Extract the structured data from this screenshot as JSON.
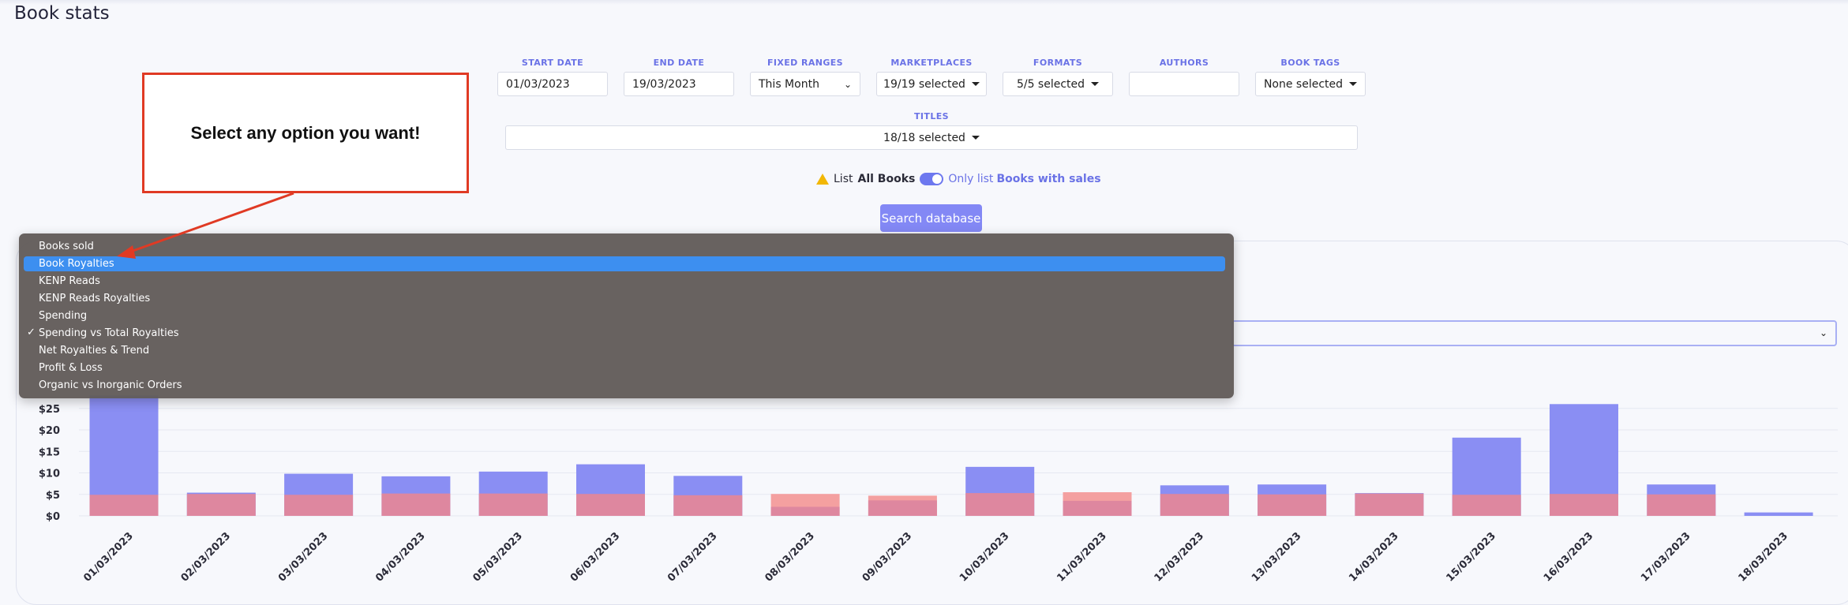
{
  "page": {
    "title": "Book stats"
  },
  "filters": {
    "start_date": {
      "label": "START DATE",
      "value": "01/03/2023"
    },
    "end_date": {
      "label": "END DATE",
      "value": "19/03/2023"
    },
    "fixed_ranges": {
      "label": "FIXED RANGES",
      "value": "This Month"
    },
    "marketplaces": {
      "label": "MARKETPLACES",
      "value": "19/19 selected"
    },
    "formats": {
      "label": "FORMATS",
      "value": "5/5 selected"
    },
    "authors": {
      "label": "AUTHORS",
      "value": ""
    },
    "book_tags": {
      "label": "BOOK TAGS",
      "value": "None selected"
    },
    "titles": {
      "label": "TITLES",
      "value": "18/18 selected"
    }
  },
  "toggle": {
    "prefix": "List",
    "all_books": "All Books",
    "only_text": "Only list",
    "books_with_sales": "Books with sales",
    "state": "on"
  },
  "search_button": "Search database",
  "annotation": {
    "text": "Select any option you want!"
  },
  "dropdown": {
    "items": [
      {
        "label": "Books sold",
        "selected": false,
        "checked": false
      },
      {
        "label": "Book Royalties",
        "selected": true,
        "checked": false
      },
      {
        "label": "KENP Reads",
        "selected": false,
        "checked": false
      },
      {
        "label": "KENP Reads Royalties",
        "selected": false,
        "checked": false
      },
      {
        "label": "Spending",
        "selected": false,
        "checked": false
      },
      {
        "label": "Spending vs Total Royalties",
        "selected": false,
        "checked": true
      },
      {
        "label": "Net Royalties & Trend",
        "selected": false,
        "checked": false
      },
      {
        "label": "Profit & Loss",
        "selected": false,
        "checked": false
      },
      {
        "label": "Organic vs Inorganic Orders",
        "selected": false,
        "checked": false
      }
    ]
  },
  "colors": {
    "accent": "#6a72e6",
    "royalties_bar": "#8a8ef3",
    "spending_bar": "#de879f",
    "spending_over_bar": "#f4a0a0",
    "selected_item": "#3d8ff0",
    "annotation_border": "#e03a24"
  },
  "chart_data": {
    "type": "bar",
    "ylabel": "",
    "xlabel": "",
    "ytick_labels": [
      "$0",
      "$5",
      "$10",
      "$15",
      "$20",
      "$25"
    ],
    "ylim": [
      0,
      28
    ],
    "categories": [
      "01/03/2023",
      "02/03/2023",
      "03/03/2023",
      "04/03/2023",
      "05/03/2023",
      "06/03/2023",
      "07/03/2023",
      "08/03/2023",
      "09/03/2023",
      "10/03/2023",
      "11/03/2023",
      "12/03/2023",
      "13/03/2023",
      "14/03/2023",
      "15/03/2023",
      "16/03/2023",
      "17/03/2023",
      "18/03/2023"
    ],
    "series": [
      {
        "values": [
          28,
          5.4,
          9.8,
          9.2,
          10.3,
          12.0,
          9.3,
          2.1,
          3.6,
          11.4,
          3.5,
          7.1,
          7.3,
          5.3,
          18.2,
          26.0,
          7.3,
          0.8
        ]
      },
      {
        "values": [
          4.9,
          5.1,
          4.9,
          5.2,
          5.2,
          5.1,
          4.8,
          5.1,
          4.7,
          5.3,
          5.5,
          5.1,
          5.0,
          5.2,
          4.9,
          5.1,
          5.0,
          0
        ]
      }
    ],
    "grid": true
  }
}
